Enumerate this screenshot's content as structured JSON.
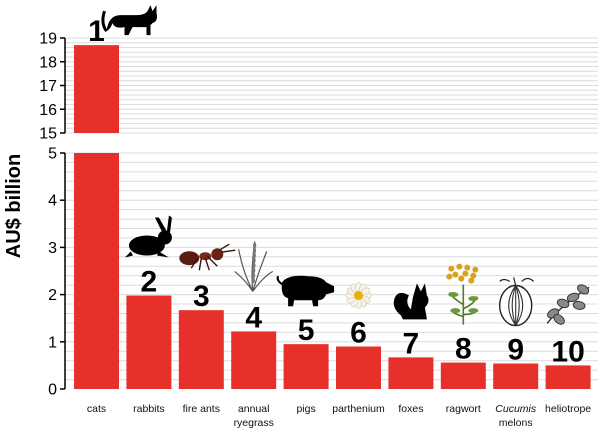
{
  "chart_data": {
    "type": "bar",
    "ylabel": "AU$ billion",
    "axis_break": {
      "lower_range": [
        0,
        5
      ],
      "upper_range": [
        15,
        19
      ]
    },
    "yticks_lower": [
      "0",
      "1",
      "2",
      "3",
      "4",
      "5"
    ],
    "yticks_upper": [
      "15",
      "16",
      "17",
      "18",
      "19"
    ],
    "grid": true,
    "bar_color": "#e8302a",
    "categories": [
      {
        "label": "cats",
        "rank": "1",
        "value": 18.7,
        "icon": "cat-icon"
      },
      {
        "label": "rabbits",
        "rank": "2",
        "value": 1.98,
        "icon": "rabbit-icon"
      },
      {
        "label": "fire ants",
        "rank": "3",
        "value": 1.67,
        "icon": "fire-ant-icon"
      },
      {
        "label": "annual ryegrass",
        "rank": "4",
        "value": 1.22,
        "icon": "ryegrass-icon"
      },
      {
        "label": "pigs",
        "rank": "5",
        "value": 0.95,
        "icon": "pig-icon"
      },
      {
        "label": "parthenium",
        "rank": "6",
        "value": 0.9,
        "icon": "parthenium-flower-icon"
      },
      {
        "label": "foxes",
        "rank": "7",
        "value": 0.67,
        "icon": "fox-icon"
      },
      {
        "label": "ragwort",
        "rank": "8",
        "value": 0.56,
        "icon": "ragwort-icon"
      },
      {
        "label": "Cucumis melons",
        "label_italic": "Cucumis",
        "label_rest": "melons",
        "rank": "9",
        "value": 0.54,
        "icon": "melon-icon"
      },
      {
        "label": "heliotrope",
        "rank": "10",
        "value": 0.5,
        "icon": "heliotrope-icon"
      }
    ]
  }
}
